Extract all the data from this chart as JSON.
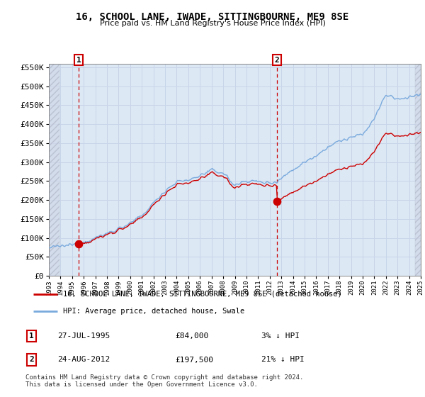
{
  "title": "16, SCHOOL LANE, IWADE, SITTINGBOURNE, ME9 8SE",
  "subtitle": "Price paid vs. HM Land Registry's House Price Index (HPI)",
  "ylim": [
    0,
    560000
  ],
  "yticks": [
    0,
    50000,
    100000,
    150000,
    200000,
    250000,
    300000,
    350000,
    400000,
    450000,
    500000,
    550000
  ],
  "ytick_labels": [
    "£0",
    "£50K",
    "£100K",
    "£150K",
    "£200K",
    "£250K",
    "£300K",
    "£350K",
    "£400K",
    "£450K",
    "£500K",
    "£550K"
  ],
  "legend_line1": "16, SCHOOL LANE, IWADE, SITTINGBOURNE, ME9 8SE (detached house)",
  "legend_line2": "HPI: Average price, detached house, Swale",
  "annotation1_label": "1",
  "annotation1_date": "27-JUL-1995",
  "annotation1_price": "£84,000",
  "annotation1_hpi": "3% ↓ HPI",
  "annotation2_label": "2",
  "annotation2_date": "24-AUG-2012",
  "annotation2_price": "£197,500",
  "annotation2_hpi": "21% ↓ HPI",
  "footer": "Contains HM Land Registry data © Crown copyright and database right 2024.\nThis data is licensed under the Open Government Licence v3.0.",
  "grid_color": "#c8d4e8",
  "bg_color": "#dce8f4",
  "line_color_hpi": "#7aaadd",
  "line_color_price": "#cc0000",
  "sale1_x": 1995.57,
  "sale1_y": 84000,
  "sale2_x": 2012.64,
  "sale2_y": 197500,
  "xmin": 1993,
  "xmax": 2025
}
